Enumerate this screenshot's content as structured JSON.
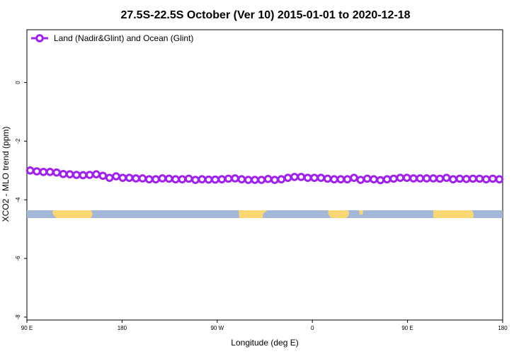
{
  "chart_data": {
    "type": "line",
    "title": "27.5S-22.5S October (Ver 10)   2015-01-01 to 2020-12-18",
    "xlabel": "Longitude (deg E)",
    "ylabel": "XCO2 - MLO trend (ppm)",
    "xlim": [
      90,
      450
    ],
    "ylim": [
      -8.1,
      1.8
    ],
    "x_ticks": [
      {
        "value": 90,
        "label": "90 E"
      },
      {
        "value": 162,
        "label": "180"
      },
      {
        "value": 234,
        "label": "90 W"
      },
      {
        "value": 306,
        "label": "0"
      },
      {
        "value": 378,
        "label": "90 E"
      },
      {
        "value": 450,
        "label": "180"
      }
    ],
    "y_ticks": [
      {
        "value": 0,
        "label": "0"
      },
      {
        "value": -2,
        "label": "-2"
      },
      {
        "value": -4,
        "label": "-4"
      },
      {
        "value": -6,
        "label": "-6"
      },
      {
        "value": -8,
        "label": "-8"
      }
    ],
    "legend": {
      "position": "top-left",
      "entries": [
        "Land (Nadir&Glint) and Ocean (Glint)"
      ]
    },
    "series": [
      {
        "name": "Land (Nadir&Glint) and Ocean (Glint)",
        "color": "#a020f0",
        "x": [
          92.5,
          97.5,
          102.5,
          107.5,
          112.5,
          117.5,
          122.5,
          127.5,
          132.5,
          137.5,
          142.5,
          147.5,
          152.5,
          157.5,
          162.5,
          167.5,
          172.5,
          177.5,
          182.5,
          187.5,
          192.5,
          197.5,
          202.5,
          207.5,
          212.5,
          217.5,
          222.5,
          227.5,
          232.5,
          237.5,
          242.5,
          247.5,
          252.5,
          257.5,
          262.5,
          267.5,
          272.5,
          277.5,
          282.5,
          287.5,
          292.5,
          297.5,
          302.5,
          307.5,
          312.5,
          317.5,
          322.5,
          327.5,
          332.5,
          337.5,
          342.5,
          347.5,
          352.5,
          357.5,
          362.5,
          367.5,
          372.5,
          377.5,
          382.5,
          387.5,
          392.5,
          397.5,
          402.5,
          407.5,
          412.5,
          417.5,
          422.5,
          427.5,
          432.5,
          437.5,
          442.5,
          447.5
        ],
        "y": [
          -3.0,
          -3.03,
          -3.05,
          -3.05,
          -3.07,
          -3.12,
          -3.13,
          -3.15,
          -3.16,
          -3.15,
          -3.13,
          -3.18,
          -3.25,
          -3.2,
          -3.25,
          -3.25,
          -3.27,
          -3.27,
          -3.3,
          -3.3,
          -3.27,
          -3.28,
          -3.3,
          -3.3,
          -3.28,
          -3.32,
          -3.3,
          -3.31,
          -3.31,
          -3.3,
          -3.28,
          -3.27,
          -3.3,
          -3.32,
          -3.32,
          -3.32,
          -3.29,
          -3.32,
          -3.3,
          -3.25,
          -3.22,
          -3.22,
          -3.25,
          -3.25,
          -3.25,
          -3.28,
          -3.3,
          -3.3,
          -3.3,
          -3.25,
          -3.32,
          -3.28,
          -3.3,
          -3.33,
          -3.3,
          -3.28,
          -3.25,
          -3.25,
          -3.27,
          -3.27,
          -3.27,
          -3.27,
          -3.28,
          -3.25,
          -3.3,
          -3.28,
          -3.29,
          -3.28,
          -3.28,
          -3.3,
          -3.28,
          -3.3
        ]
      }
    ]
  }
}
